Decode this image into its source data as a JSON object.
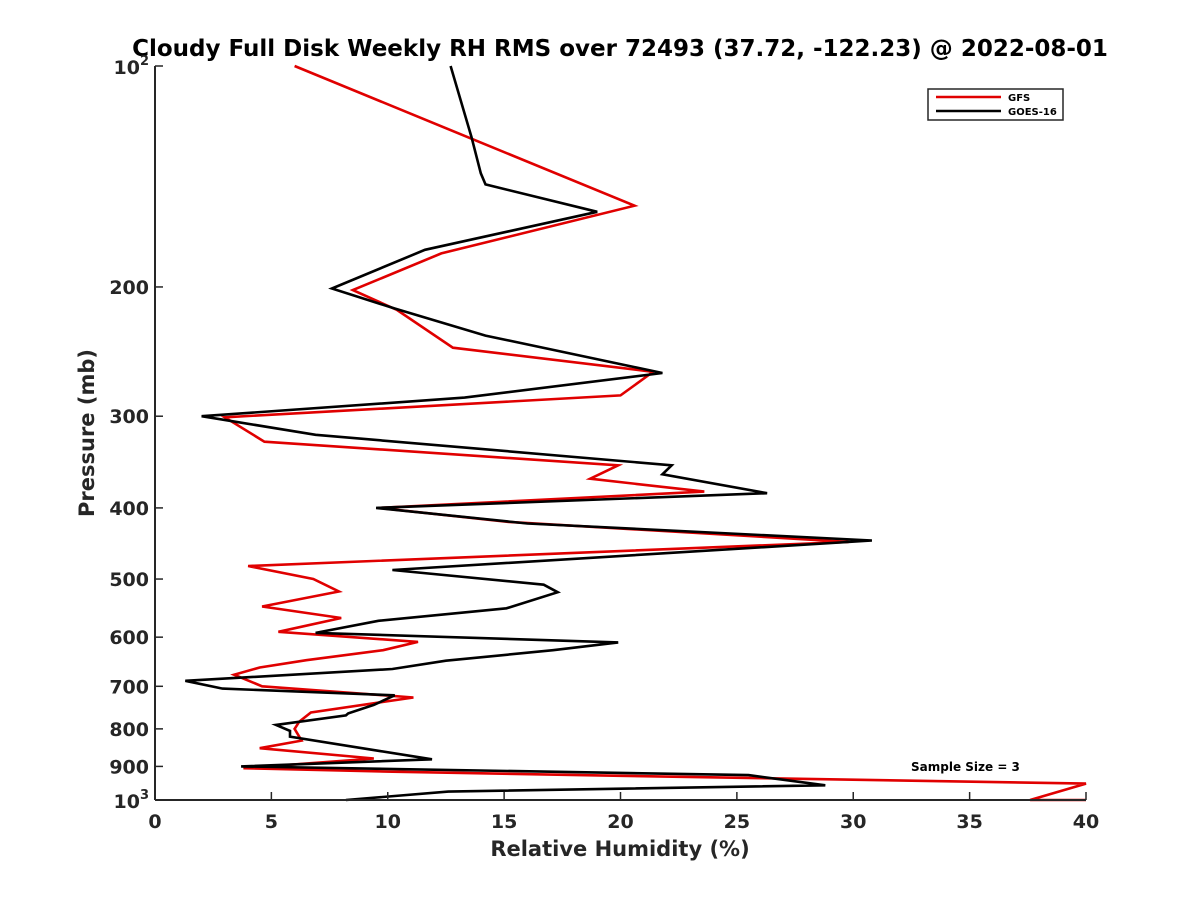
{
  "chart_data": {
    "type": "line",
    "title": "Cloudy Full Disk Weekly RH RMS over 72493 (37.72, -122.23) @ 2022-08-01",
    "xlabel": "Relative Humidity (%)",
    "ylabel": "Pressure (mb)",
    "xlim": [
      0,
      40
    ],
    "ylim": [
      100,
      1000
    ],
    "yscale": "log",
    "y_reversed": true,
    "grid": false,
    "legend_position": "top-right",
    "xticks": [
      "0",
      "5",
      "10",
      "15",
      "20",
      "25",
      "30",
      "35",
      "40"
    ],
    "yticks": [
      {
        "value": 100,
        "base": "10",
        "exp": "2"
      },
      {
        "value": 200,
        "label": "200"
      },
      {
        "value": 300,
        "label": "300"
      },
      {
        "value": 400,
        "label": "400"
      },
      {
        "value": 500,
        "label": "500"
      },
      {
        "value": 600,
        "label": "600"
      },
      {
        "value": 700,
        "label": "700"
      },
      {
        "value": 800,
        "label": "800"
      },
      {
        "value": 900,
        "label": "900"
      },
      {
        "value": 1000,
        "base": "10",
        "exp": "3"
      }
    ],
    "annotation": "Sample Size = 3",
    "series": [
      {
        "name": "GFS",
        "color": "#e00000",
        "points": [
          [
            6.0,
            100
          ],
          [
            20.6,
            155
          ],
          [
            12.3,
            180
          ],
          [
            8.5,
            202
          ],
          [
            10.4,
            215
          ],
          [
            12.8,
            242
          ],
          [
            21.4,
            261
          ],
          [
            20.0,
            281
          ],
          [
            3.0,
            301
          ],
          [
            4.7,
            325
          ],
          [
            19.9,
            350
          ],
          [
            18.7,
            365
          ],
          [
            23.6,
            380
          ],
          [
            9.6,
            400
          ],
          [
            15.2,
            418
          ],
          [
            29.8,
            445
          ],
          [
            4.0,
            480
          ],
          [
            6.8,
            500
          ],
          [
            7.9,
            520
          ],
          [
            4.6,
            545
          ],
          [
            8.0,
            565
          ],
          [
            5.3,
            590
          ],
          [
            11.3,
            609
          ],
          [
            9.8,
            625
          ],
          [
            6.5,
            645
          ],
          [
            4.5,
            660
          ],
          [
            3.4,
            675
          ],
          [
            4.6,
            700
          ],
          [
            11.1,
            725
          ],
          [
            6.7,
            760
          ],
          [
            6.2,
            782
          ],
          [
            6.0,
            800
          ],
          [
            6.3,
            830
          ],
          [
            4.5,
            850
          ],
          [
            9.4,
            878
          ],
          [
            3.8,
            905
          ],
          [
            10.2,
            915
          ],
          [
            20.0,
            927
          ],
          [
            40.0,
            950
          ],
          [
            37.6,
            1000
          ],
          [
            40.0,
            1000
          ]
        ]
      },
      {
        "name": "GOES-16",
        "color": "#000000",
        "points": [
          [
            12.7,
            100
          ],
          [
            13.6,
            125
          ],
          [
            14.0,
            140
          ],
          [
            14.2,
            145
          ],
          [
            19.0,
            158
          ],
          [
            11.6,
            178
          ],
          [
            7.6,
            201
          ],
          [
            10.3,
            214
          ],
          [
            14.2,
            233
          ],
          [
            21.8,
            262
          ],
          [
            13.3,
            283
          ],
          [
            2.0,
            300
          ],
          [
            6.9,
            318
          ],
          [
            22.2,
            350
          ],
          [
            21.8,
            360
          ],
          [
            26.3,
            382
          ],
          [
            9.5,
            400
          ],
          [
            16.0,
            420
          ],
          [
            30.8,
            443
          ],
          [
            10.2,
            486
          ],
          [
            16.7,
            509
          ],
          [
            17.3,
            521
          ],
          [
            15.1,
            548
          ],
          [
            9.6,
            570
          ],
          [
            6.9,
            592
          ],
          [
            19.9,
            610
          ],
          [
            17.1,
            625
          ],
          [
            12.5,
            646
          ],
          [
            10.2,
            663
          ],
          [
            1.3,
            688
          ],
          [
            2.9,
            705
          ],
          [
            10.3,
            720
          ],
          [
            9.4,
            742
          ],
          [
            8.3,
            762
          ],
          [
            8.2,
            767
          ],
          [
            5.2,
            790
          ],
          [
            5.8,
            805
          ],
          [
            5.8,
            820
          ],
          [
            9.7,
            858
          ],
          [
            11.9,
            880
          ],
          [
            3.7,
            900
          ],
          [
            25.5,
            925
          ],
          [
            28.8,
            955
          ],
          [
            12.6,
            974
          ],
          [
            8.2,
            1000
          ]
        ]
      }
    ]
  }
}
